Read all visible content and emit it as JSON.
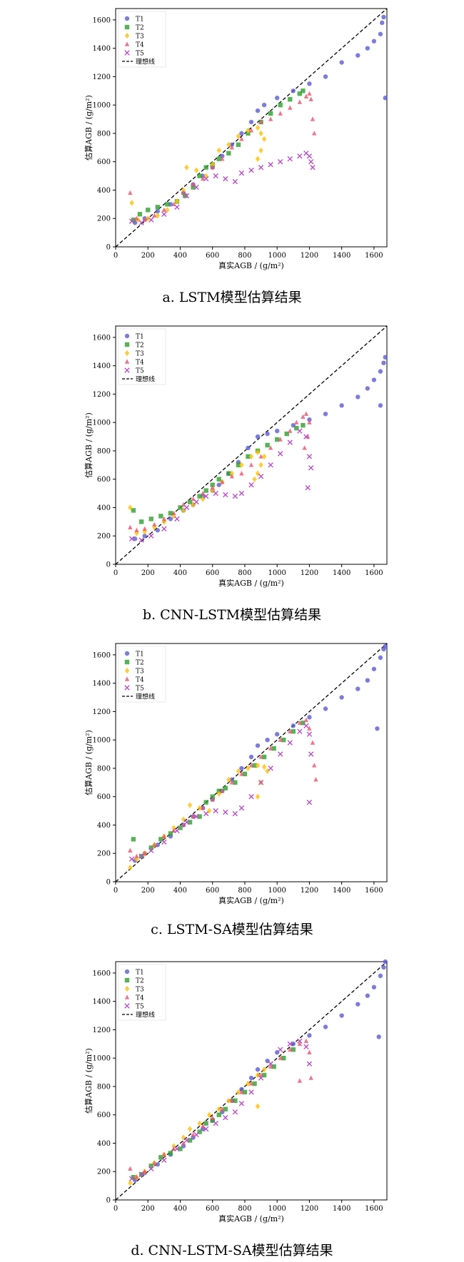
{
  "common": {
    "legend_labels": [
      "T1",
      "T2",
      "T3",
      "T4",
      "T5",
      "理想线"
    ],
    "series_colors": [
      "#5b5bd6",
      "#2ca02c",
      "#ffc000",
      "#e8546f",
      "#b84fc7"
    ],
    "xlabel": "真实AGB / (g/m²)",
    "ylabel": "估算AGB / (g/m²)",
    "ticks": [
      0,
      200,
      400,
      600,
      800,
      1000,
      1200,
      1400,
      1600
    ]
  },
  "captions": [
    "a. LSTM模型估算结果",
    "b. CNN-LSTM模型估算结果",
    "c. LSTM-SA模型估算结果",
    "d. CNN-LSTM-SA模型估算结果"
  ],
  "chart_data": [
    {
      "type": "scatter",
      "xlabel": "真实AGB / (g/m²)",
      "ylabel": "估算AGB / (g/m²)",
      "xlim": [
        0,
        1680
      ],
      "ylim": [
        0,
        1680
      ],
      "legend": "top-left",
      "grid": false,
      "reference_line": "理想线",
      "series": [
        {
          "name": "T1",
          "marker": "circle",
          "x": [
            120,
            180,
            260,
            340,
            420,
            480,
            540,
            600,
            660,
            720,
            780,
            840,
            880,
            920,
            1000,
            1100,
            1200,
            1300,
            1400,
            1500,
            1560,
            1600,
            1640,
            1650,
            1660,
            1670
          ],
          "y": [
            170,
            200,
            250,
            300,
            380,
            440,
            500,
            560,
            640,
            720,
            800,
            880,
            960,
            1000,
            1050,
            1100,
            1150,
            1200,
            1300,
            1350,
            1400,
            1450,
            1500,
            1580,
            1620,
            1050
          ]
        },
        {
          "name": "T2",
          "marker": "square",
          "x": [
            110,
            150,
            200,
            260,
            320,
            380,
            430,
            480,
            520,
            560,
            600,
            640,
            700,
            760,
            820,
            900,
            960,
            1020,
            1080,
            1140,
            1160
          ],
          "y": [
            190,
            230,
            260,
            280,
            300,
            320,
            360,
            420,
            500,
            560,
            580,
            620,
            660,
            720,
            800,
            880,
            940,
            1000,
            1040,
            1080,
            1100
          ]
        },
        {
          "name": "T3",
          "marker": "diamond",
          "x": [
            100,
            140,
            200,
            260,
            320,
            380,
            420,
            440,
            500,
            560,
            600,
            640,
            700,
            760,
            820,
            880,
            900,
            920,
            900,
            880
          ],
          "y": [
            310,
            190,
            200,
            220,
            260,
            320,
            400,
            560,
            540,
            500,
            580,
            680,
            720,
            780,
            820,
            840,
            800,
            760,
            680,
            620
          ]
        },
        {
          "name": "T4",
          "marker": "triangle",
          "x": [
            90,
            130,
            180,
            240,
            300,
            360,
            420,
            480,
            540,
            600,
            660,
            720,
            780,
            840,
            900,
            960,
            1020,
            1080,
            1140,
            1180,
            1200,
            1210,
            1220,
            1230
          ],
          "y": [
            380,
            200,
            190,
            220,
            260,
            300,
            380,
            440,
            480,
            560,
            620,
            700,
            760,
            820,
            880,
            900,
            940,
            980,
            1020,
            1060,
            1080,
            1040,
            900,
            800
          ]
        },
        {
          "name": "T5",
          "marker": "x",
          "x": [
            100,
            160,
            220,
            300,
            380,
            440,
            500,
            560,
            620,
            680,
            740,
            780,
            840,
            900,
            960,
            1020,
            1080,
            1140,
            1180,
            1200,
            1210,
            1220
          ],
          "y": [
            180,
            170,
            190,
            230,
            280,
            360,
            420,
            480,
            500,
            480,
            460,
            520,
            540,
            560,
            580,
            600,
            620,
            640,
            660,
            640,
            600,
            560
          ]
        }
      ]
    },
    {
      "type": "scatter",
      "xlabel": "真实AGB / (g/m²)",
      "ylabel": "估算AGB / (g/m²)",
      "xlim": [
        0,
        1680
      ],
      "ylim": [
        0,
        1680
      ],
      "legend": "top-left",
      "grid": false,
      "reference_line": "理想线",
      "series": [
        {
          "name": "T1",
          "marker": "circle",
          "x": [
            120,
            180,
            260,
            340,
            420,
            480,
            540,
            600,
            640,
            700,
            760,
            820,
            880,
            940,
            1000,
            1100,
            1200,
            1300,
            1400,
            1500,
            1560,
            1600,
            1640,
            1660,
            1670,
            1640
          ],
          "y": [
            180,
            200,
            240,
            320,
            380,
            420,
            480,
            520,
            560,
            640,
            720,
            820,
            900,
            920,
            940,
            980,
            1020,
            1060,
            1120,
            1180,
            1240,
            1300,
            1360,
            1420,
            1460,
            1120
          ]
        },
        {
          "name": "T2",
          "marker": "square",
          "x": [
            110,
            160,
            220,
            280,
            340,
            400,
            460,
            520,
            560,
            600,
            640,
            700,
            760,
            820,
            880,
            940,
            1000,
            1060,
            1120,
            1160
          ],
          "y": [
            380,
            300,
            320,
            340,
            360,
            400,
            440,
            480,
            520,
            560,
            600,
            640,
            700,
            760,
            800,
            840,
            880,
            920,
            960,
            980
          ]
        },
        {
          "name": "T3",
          "marker": "diamond",
          "x": [
            90,
            130,
            180,
            240,
            300,
            360,
            420,
            480,
            540,
            600,
            660,
            720,
            780,
            840,
            880,
            920,
            900,
            880,
            860
          ],
          "y": [
            400,
            220,
            230,
            260,
            300,
            340,
            380,
            420,
            460,
            520,
            580,
            640,
            700,
            760,
            790,
            760,
            700,
            640,
            600
          ]
        },
        {
          "name": "T4",
          "marker": "triangle",
          "x": [
            90,
            130,
            180,
            240,
            300,
            360,
            420,
            480,
            540,
            600,
            660,
            720,
            780,
            840,
            900,
            960,
            1020,
            1080,
            1120,
            1160,
            1180,
            1200,
            1190,
            1170
          ],
          "y": [
            260,
            240,
            250,
            280,
            320,
            360,
            420,
            460,
            500,
            540,
            580,
            620,
            640,
            700,
            760,
            820,
            880,
            940,
            1000,
            1040,
            1060,
            1000,
            900,
            820
          ]
        },
        {
          "name": "T5",
          "marker": "x",
          "x": [
            100,
            160,
            220,
            300,
            380,
            440,
            500,
            560,
            620,
            680,
            740,
            780,
            840,
            900,
            960,
            1020,
            1080,
            1140,
            1180,
            1200,
            1210,
            1190
          ],
          "y": [
            180,
            170,
            200,
            250,
            320,
            400,
            440,
            480,
            500,
            490,
            480,
            500,
            560,
            620,
            700,
            780,
            860,
            940,
            900,
            760,
            680,
            540
          ]
        }
      ]
    },
    {
      "type": "scatter",
      "xlabel": "真实AGB / (g/m²)",
      "ylabel": "估算AGB / (g/m²)",
      "xlim": [
        0,
        1680
      ],
      "ylim": [
        0,
        1680
      ],
      "legend": "top-left",
      "grid": false,
      "reference_line": "理想线",
      "series": [
        {
          "name": "T1",
          "marker": "circle",
          "x": [
            120,
            180,
            260,
            340,
            420,
            480,
            540,
            600,
            660,
            720,
            780,
            840,
            880,
            940,
            1000,
            1100,
            1200,
            1300,
            1400,
            1500,
            1560,
            1600,
            1640,
            1660,
            1670,
            1620
          ],
          "y": [
            150,
            200,
            260,
            320,
            400,
            460,
            520,
            580,
            640,
            720,
            800,
            880,
            960,
            1000,
            1040,
            1100,
            1160,
            1220,
            1300,
            1360,
            1420,
            1500,
            1580,
            1640,
            1660,
            1080
          ]
        },
        {
          "name": "T2",
          "marker": "square",
          "x": [
            110,
            160,
            220,
            280,
            340,
            400,
            460,
            520,
            560,
            600,
            640,
            680,
            740,
            800,
            860,
            920,
            980,
            1040,
            1100,
            1160
          ],
          "y": [
            300,
            180,
            240,
            300,
            340,
            380,
            420,
            460,
            560,
            600,
            640,
            660,
            700,
            760,
            820,
            880,
            940,
            1000,
            1060,
            1120
          ]
        },
        {
          "name": "T3",
          "marker": "diamond",
          "x": [
            90,
            130,
            180,
            240,
            300,
            360,
            420,
            460,
            520,
            580,
            640,
            700,
            760,
            820,
            880,
            920,
            940,
            900,
            880
          ],
          "y": [
            100,
            160,
            200,
            260,
            320,
            380,
            440,
            540,
            520,
            500,
            620,
            720,
            780,
            800,
            820,
            810,
            780,
            700,
            600
          ]
        },
        {
          "name": "T4",
          "marker": "triangle",
          "x": [
            90,
            130,
            180,
            240,
            300,
            360,
            420,
            480,
            540,
            600,
            660,
            720,
            780,
            840,
            900,
            960,
            1020,
            1080,
            1140,
            1180,
            1200,
            1220,
            1230,
            1240
          ],
          "y": [
            220,
            180,
            200,
            260,
            320,
            360,
            400,
            460,
            520,
            580,
            640,
            700,
            760,
            820,
            880,
            940,
            1000,
            1060,
            1120,
            1140,
            1080,
            980,
            820,
            720
          ]
        },
        {
          "name": "T5",
          "marker": "x",
          "x": [
            100,
            160,
            220,
            300,
            380,
            440,
            500,
            560,
            620,
            680,
            740,
            780,
            840,
            900,
            960,
            1020,
            1080,
            1140,
            1180,
            1200,
            1210,
            1200
          ],
          "y": [
            160,
            180,
            220,
            280,
            360,
            420,
            460,
            480,
            500,
            490,
            480,
            520,
            600,
            700,
            800,
            900,
            980,
            1060,
            1100,
            1040,
            900,
            560
          ]
        }
      ]
    },
    {
      "type": "scatter",
      "xlabel": "真实AGB / (g/m²)",
      "ylabel": "估算AGB / (g/m²)",
      "xlim": [
        0,
        1680
      ],
      "ylim": [
        0,
        1680
      ],
      "legend": "top-left",
      "grid": false,
      "reference_line": "理想线",
      "series": [
        {
          "name": "T1",
          "marker": "circle",
          "x": [
            120,
            180,
            260,
            340,
            420,
            480,
            540,
            600,
            660,
            720,
            780,
            840,
            880,
            940,
            1000,
            1100,
            1200,
            1300,
            1400,
            1500,
            1560,
            1600,
            1640,
            1660,
            1670,
            1630
          ],
          "y": [
            140,
            190,
            250,
            320,
            380,
            440,
            500,
            560,
            620,
            700,
            780,
            860,
            920,
            980,
            1040,
            1100,
            1160,
            1220,
            1300,
            1380,
            1440,
            1500,
            1580,
            1640,
            1680,
            1150
          ]
        },
        {
          "name": "T2",
          "marker": "square",
          "x": [
            110,
            160,
            220,
            280,
            340,
            400,
            460,
            520,
            560,
            600,
            640,
            680,
            740,
            800,
            860,
            920,
            980,
            1040,
            1100
          ],
          "y": [
            160,
            180,
            240,
            300,
            330,
            360,
            420,
            480,
            540,
            560,
            600,
            640,
            700,
            760,
            820,
            880,
            940,
            1000,
            1060
          ]
        },
        {
          "name": "T3",
          "marker": "diamond",
          "x": [
            90,
            130,
            180,
            240,
            300,
            360,
            420,
            460,
            520,
            580,
            640,
            700,
            760,
            820,
            880,
            920,
            880
          ],
          "y": [
            120,
            160,
            200,
            260,
            320,
            380,
            440,
            500,
            540,
            600,
            640,
            700,
            760,
            820,
            880,
            920,
            660
          ]
        },
        {
          "name": "T4",
          "marker": "triangle",
          "x": [
            90,
            130,
            180,
            240,
            300,
            360,
            420,
            480,
            540,
            600,
            660,
            720,
            780,
            840,
            900,
            960,
            1020,
            1080,
            1140,
            1180,
            1200,
            1210,
            1140
          ],
          "y": [
            220,
            160,
            200,
            260,
            320,
            360,
            400,
            460,
            520,
            580,
            640,
            700,
            760,
            820,
            880,
            940,
            1000,
            1060,
            1100,
            1120,
            1040,
            860,
            840
          ]
        },
        {
          "name": "T5",
          "marker": "x",
          "x": [
            100,
            160,
            220,
            300,
            380,
            440,
            500,
            560,
            620,
            680,
            740,
            780,
            840,
            900,
            960,
            1020,
            1080,
            1140,
            1180,
            1200
          ],
          "y": [
            150,
            180,
            220,
            280,
            360,
            420,
            460,
            500,
            540,
            580,
            620,
            680,
            760,
            860,
            960,
            1060,
            1100,
            1120,
            1080,
            960
          ]
        }
      ]
    }
  ]
}
